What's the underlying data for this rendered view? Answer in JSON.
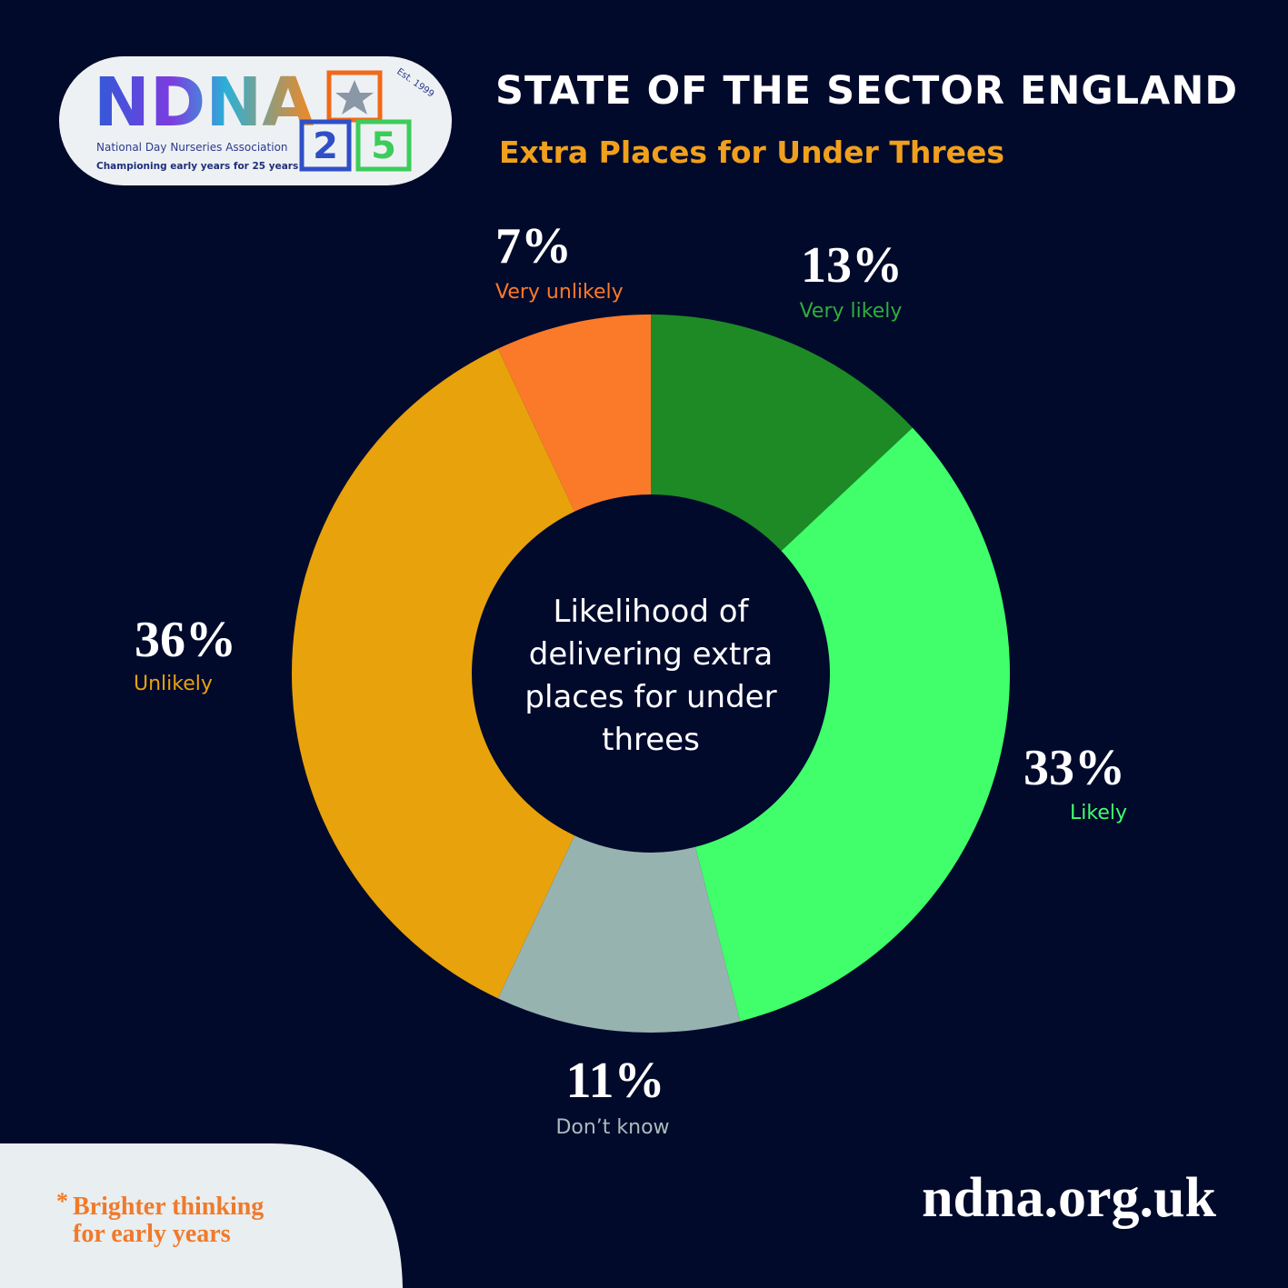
{
  "header": {
    "title": "STATE OF THE SECTOR ENGLAND",
    "subtitle": "Extra Places for Under Threes"
  },
  "logo": {
    "name": "NDNA",
    "full_name": "National Day Nurseries Association",
    "tagline": "Championing early years for 25 years",
    "established": "Est. 1999",
    "block_left": "2",
    "block_right": "5"
  },
  "chart_data": {
    "type": "donut",
    "center_label": "Likelihood of delivering extra places for under threes",
    "categories": [
      "Very likely",
      "Likely",
      "Don’t know",
      "Unlikely",
      "Very unlikely"
    ],
    "values": [
      13,
      33,
      11,
      36,
      7
    ],
    "value_labels": [
      "13%",
      "33%",
      "11%",
      "36%",
      "7%"
    ],
    "colors": [
      "#1d8a26",
      "#41ff6b",
      "#97b3b0",
      "#e8a20b",
      "#fb7a29"
    ]
  },
  "footer": {
    "star": "*",
    "slogan": [
      "Brighter thinking",
      "for early years"
    ],
    "website": "ndna.org.uk"
  }
}
